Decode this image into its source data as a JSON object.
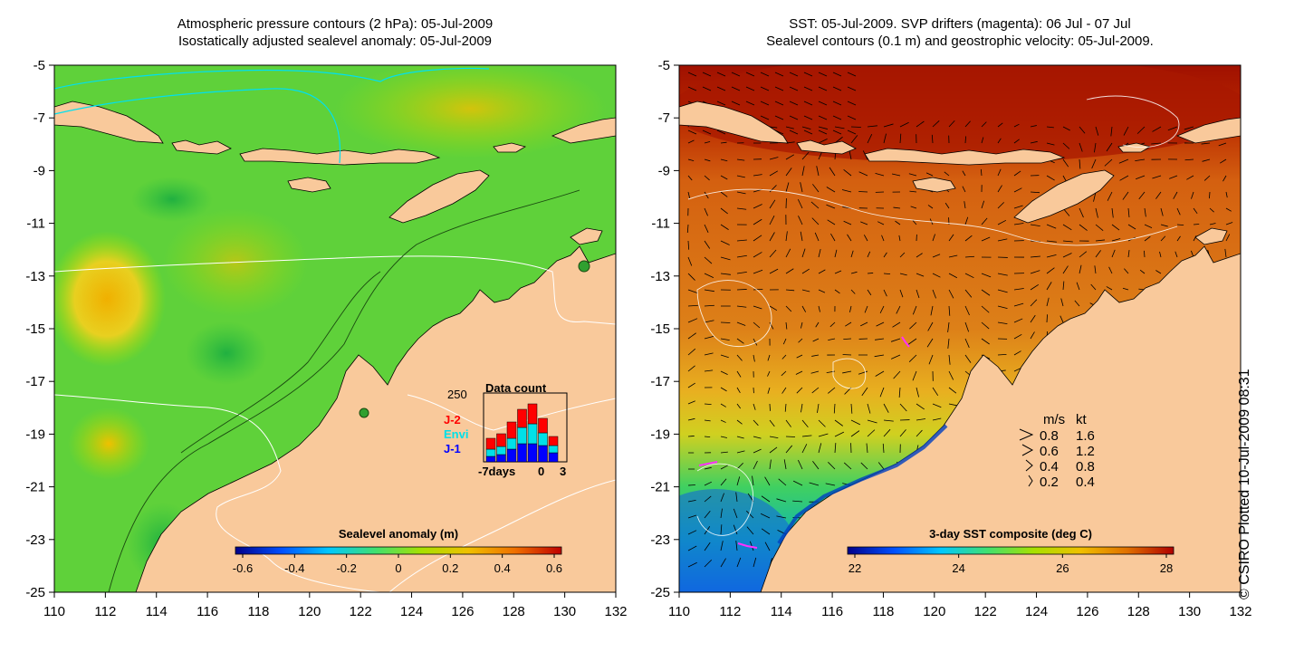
{
  "left_panel": {
    "title_line1": "Atmospheric pressure contours (2 hPa): 05-Jul-2009",
    "title_line2": "Isostatically adjusted sealevel anomaly: 05-Jul-2009",
    "colorbar_label": "Sealevel anomaly (m)",
    "colorbar_ticks": [
      "-0.6",
      "-0.4",
      "-0.2",
      "0",
      "0.2",
      "0.4",
      "0.6"
    ],
    "colorbar_colors": [
      "#00008b",
      "#0050ff",
      "#00c8ff",
      "#40e070",
      "#a8e000",
      "#f0c000",
      "#f07000",
      "#c00000"
    ],
    "inset": {
      "title": "Data count",
      "y_max_label": "250",
      "x_labels": [
        "-7days",
        "0",
        "3"
      ],
      "legend": [
        {
          "name": "J-2",
          "color": "#ff0000"
        },
        {
          "name": "Envi",
          "color": "#00e0e8"
        },
        {
          "name": "J-1",
          "color": "#0000ff"
        }
      ]
    }
  },
  "right_panel": {
    "title_line1": "SST: 05-Jul-2009. SVP drifters (magenta): 06 Jul - 07 Jul",
    "title_line2": "Sealevel contours (0.1 m) and geostrophic velocity: 05-Jul-2009.",
    "colorbar_label": "3-day SST composite (deg C)",
    "colorbar_ticks": [
      "22",
      "24",
      "26",
      "28"
    ],
    "colorbar_colors": [
      "#00008b",
      "#0050ff",
      "#00c8ff",
      "#40e070",
      "#a8e000",
      "#f0c000",
      "#e07000",
      "#b00000"
    ],
    "velocity_key": {
      "headers": [
        "m/s",
        "kt"
      ],
      "rows": [
        [
          "0.8",
          "1.6"
        ],
        [
          "0.6",
          "1.2"
        ],
        [
          "0.4",
          "0.8"
        ],
        [
          "0.2",
          "0.4"
        ]
      ]
    }
  },
  "axes": {
    "y_ticks": [
      "-5",
      "-7",
      "-9",
      "-11",
      "-13",
      "-15",
      "-17",
      "-19",
      "-21",
      "-23",
      "-25"
    ],
    "x_ticks": [
      "110",
      "112",
      "114",
      "116",
      "118",
      "120",
      "122",
      "124",
      "126",
      "128",
      "130",
      "132"
    ]
  },
  "credit": "© CSIRO Plotted 10-Jul-2009 08:31",
  "colors": {
    "land": "#f9c99b",
    "ocean_left": "#5fd13a",
    "ocean_right": "#d97a14"
  }
}
